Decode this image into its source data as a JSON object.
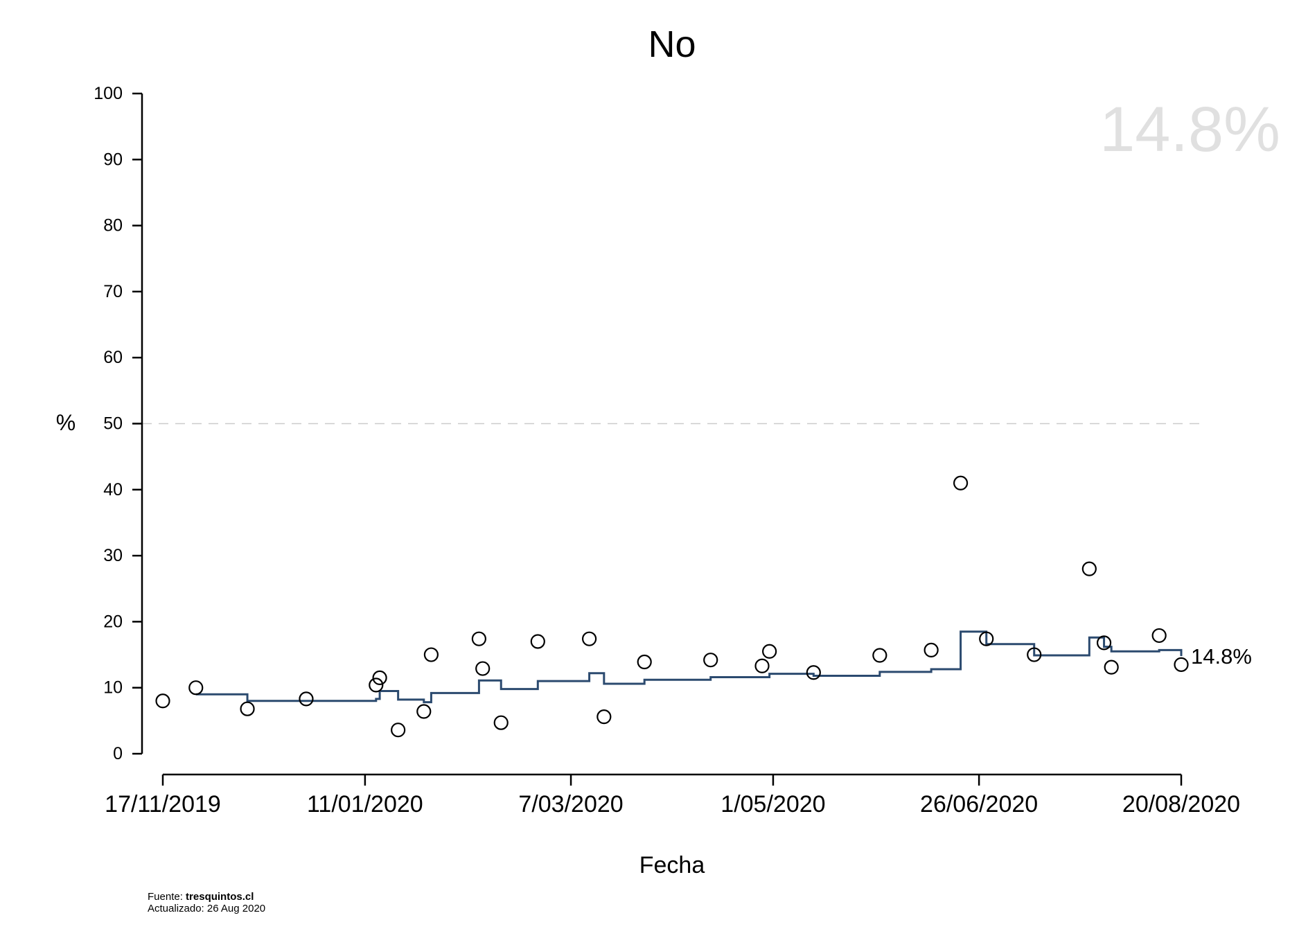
{
  "chart_data": {
    "type": "scatter",
    "title": "No",
    "xlabel": "Fecha",
    "ylabel": "%",
    "ylim": [
      0,
      100
    ],
    "yticks": [
      0,
      10,
      20,
      30,
      40,
      50,
      60,
      70,
      80,
      90,
      100
    ],
    "xlim": [
      "2019-11-17",
      "2020-08-20"
    ],
    "xticks": [
      {
        "date": "2019-11-17",
        "label": "17/11/2019"
      },
      {
        "date": "2020-01-11",
        "label": "11/01/2020"
      },
      {
        "date": "2020-03-07",
        "label": "7/03/2020"
      },
      {
        "date": "2020-05-01",
        "label": "1/05/2020"
      },
      {
        "date": "2020-06-26",
        "label": "26/06/2020"
      },
      {
        "date": "2020-08-20",
        "label": "20/08/2020"
      }
    ],
    "reference_line": {
      "y": 50,
      "style": "dashed",
      "color": "#cccccc"
    },
    "watermark": "14.8%",
    "end_label": "14.8%",
    "colors": {
      "trend": "#2b4a6f",
      "points": "#000000",
      "watermark": "#e0e0e0"
    },
    "points": [
      {
        "x": "2019-11-17",
        "y": 8.0
      },
      {
        "x": "2019-11-26",
        "y": 10.0
      },
      {
        "x": "2019-12-10",
        "y": 6.8
      },
      {
        "x": "2019-12-26",
        "y": 8.3
      },
      {
        "x": "2020-01-14",
        "y": 10.4
      },
      {
        "x": "2020-01-15",
        "y": 11.5
      },
      {
        "x": "2020-01-20",
        "y": 3.6
      },
      {
        "x": "2020-01-27",
        "y": 6.4
      },
      {
        "x": "2020-01-29",
        "y": 15.0
      },
      {
        "x": "2020-02-11",
        "y": 17.4
      },
      {
        "x": "2020-02-12",
        "y": 12.9
      },
      {
        "x": "2020-02-17",
        "y": 4.7
      },
      {
        "x": "2020-02-27",
        "y": 17.0
      },
      {
        "x": "2020-03-12",
        "y": 17.4
      },
      {
        "x": "2020-03-16",
        "y": 5.6
      },
      {
        "x": "2020-03-27",
        "y": 13.9
      },
      {
        "x": "2020-04-14",
        "y": 14.2
      },
      {
        "x": "2020-04-28",
        "y": 13.3
      },
      {
        "x": "2020-04-30",
        "y": 15.5
      },
      {
        "x": "2020-05-12",
        "y": 12.3
      },
      {
        "x": "2020-05-30",
        "y": 14.9
      },
      {
        "x": "2020-06-13",
        "y": 15.7
      },
      {
        "x": "2020-06-21",
        "y": 41.0
      },
      {
        "x": "2020-06-28",
        "y": 17.4
      },
      {
        "x": "2020-07-11",
        "y": 15.0
      },
      {
        "x": "2020-07-26",
        "y": 28.0
      },
      {
        "x": "2020-07-30",
        "y": 16.8
      },
      {
        "x": "2020-08-01",
        "y": 13.1
      },
      {
        "x": "2020-08-14",
        "y": 17.9
      },
      {
        "x": "2020-08-20",
        "y": 13.5
      }
    ],
    "trend_steps": [
      {
        "x": "2019-11-26",
        "y": 9.0
      },
      {
        "x": "2019-12-10",
        "y": 8.0
      },
      {
        "x": "2020-01-14",
        "y": 8.3
      },
      {
        "x": "2020-01-15",
        "y": 9.5
      },
      {
        "x": "2020-01-20",
        "y": 8.2
      },
      {
        "x": "2020-01-27",
        "y": 7.8
      },
      {
        "x": "2020-01-29",
        "y": 9.2
      },
      {
        "x": "2020-02-11",
        "y": 11.1
      },
      {
        "x": "2020-02-17",
        "y": 9.8
      },
      {
        "x": "2020-02-27",
        "y": 11.0
      },
      {
        "x": "2020-03-12",
        "y": 12.2
      },
      {
        "x": "2020-03-16",
        "y": 10.6
      },
      {
        "x": "2020-03-27",
        "y": 11.2
      },
      {
        "x": "2020-04-14",
        "y": 11.6
      },
      {
        "x": "2020-04-30",
        "y": 12.1
      },
      {
        "x": "2020-05-12",
        "y": 11.8
      },
      {
        "x": "2020-05-30",
        "y": 12.4
      },
      {
        "x": "2020-06-13",
        "y": 12.8
      },
      {
        "x": "2020-06-21",
        "y": 18.5
      },
      {
        "x": "2020-06-28",
        "y": 16.6
      },
      {
        "x": "2020-07-11",
        "y": 14.9
      },
      {
        "x": "2020-07-26",
        "y": 17.6
      },
      {
        "x": "2020-07-30",
        "y": 16.2
      },
      {
        "x": "2020-08-01",
        "y": 15.5
      },
      {
        "x": "2020-08-14",
        "y": 15.7
      },
      {
        "x": "2020-08-20",
        "y": 14.8
      }
    ]
  },
  "footer": {
    "source_prefix": "Fuente: ",
    "source_site": "tresquintos.cl",
    "updated": "Actualizado: 26 Aug 2020"
  }
}
